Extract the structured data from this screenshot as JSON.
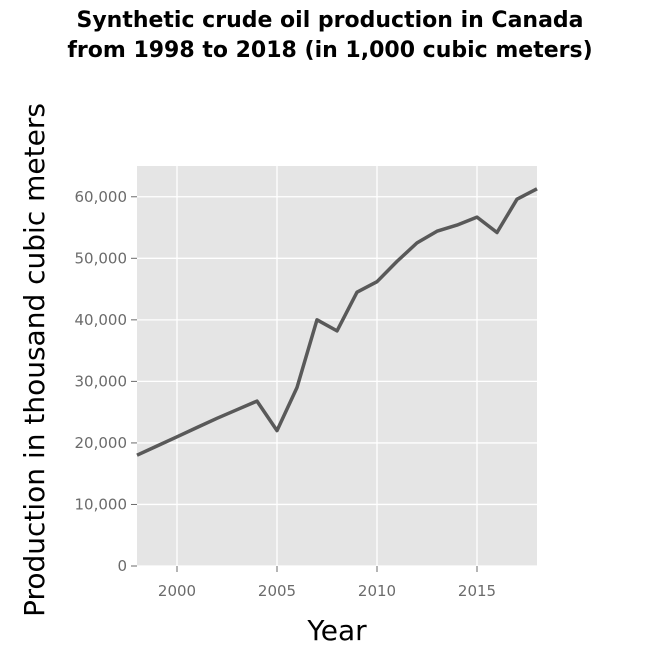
{
  "chart_data": {
    "type": "line",
    "title_line1": "Synthetic crude oil production in Canada",
    "title_line2": "from 1998 to 2018 (in 1,000 cubic meters)",
    "xlabel": "Year",
    "ylabel": "Production in thousand cubic meters",
    "xlim": [
      1998,
      2018
    ],
    "ylim": [
      0,
      65000
    ],
    "x_ticks": [
      2000,
      2005,
      2010,
      2015
    ],
    "x_tick_labels": [
      "2000",
      "2005",
      "2010",
      "2015"
    ],
    "y_ticks": [
      0,
      10000,
      20000,
      30000,
      40000,
      50000,
      60000
    ],
    "y_tick_labels": [
      "0",
      "10,000",
      "20,000",
      "30,000",
      "40,000",
      "50,000",
      "60,000"
    ],
    "grid": true,
    "line_color": "#595959",
    "background": "#e5e5e5",
    "series": [
      {
        "x": [
          1998,
          1999,
          2000,
          2001,
          2002,
          2003,
          2004,
          2005,
          2006,
          2007,
          2008,
          2009,
          2010,
          2011,
          2012,
          2013,
          2014,
          2015,
          2016,
          2017,
          2018
        ],
        "values": [
          18000,
          19500,
          21000,
          22500,
          24000,
          25400,
          26800,
          22000,
          29000,
          40000,
          38200,
          44500,
          46200,
          49500,
          52500,
          54400,
          55400,
          56700,
          54200,
          59600,
          61300
        ]
      }
    ]
  }
}
